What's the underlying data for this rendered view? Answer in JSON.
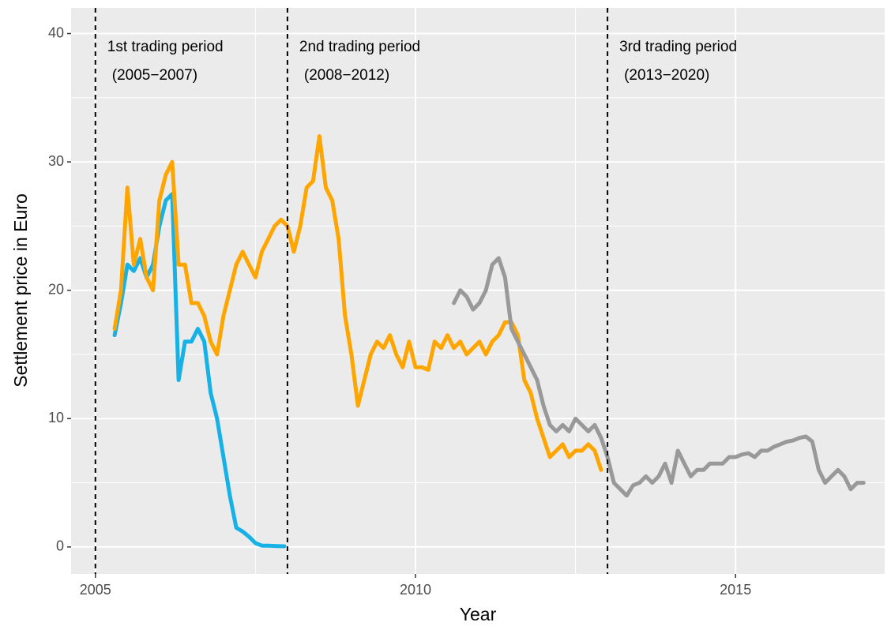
{
  "chart_data": {
    "type": "line",
    "xlabel": "Year",
    "ylabel": "Settlement price in Euro",
    "xlim": [
      2004.62,
      2017.33
    ],
    "ylim": [
      -2.1,
      42
    ],
    "xticks": [
      2005,
      2010,
      2015
    ],
    "yticks": [
      0,
      10,
      20,
      30,
      40
    ],
    "minor_xticks": [
      2007.5,
      2012.5,
      2017.5
    ],
    "minor_yticks": [
      5,
      15,
      25,
      35
    ],
    "grid": true,
    "periods": [
      {
        "start": 2005,
        "label": "1st trading period",
        "range": "(2005−2007)"
      },
      {
        "start": 2008,
        "label": "2nd trading period",
        "range": "(2008−2012)"
      },
      {
        "start": 2013,
        "label": "3rd trading period",
        "range": "(2013−2020)"
      }
    ],
    "series": [
      {
        "color": "#16b1e6",
        "x": [
          2005.3,
          2005.4,
          2005.5,
          2005.6,
          2005.7,
          2005.8,
          2005.9,
          2006.0,
          2006.1,
          2006.2,
          2006.3,
          2006.4,
          2006.5,
          2006.6,
          2006.7,
          2006.8,
          2006.9,
          2007.0,
          2007.1,
          2007.2,
          2007.3,
          2007.4,
          2007.5,
          2007.6,
          2007.7,
          2007.8,
          2007.95
        ],
        "values": [
          16.5,
          19,
          22,
          21.5,
          22.5,
          21,
          22,
          25,
          27,
          27.5,
          13,
          16,
          16,
          17,
          16,
          12,
          10,
          7,
          4,
          1.5,
          1.2,
          0.8,
          0.3,
          0.1,
          0.1,
          0.08,
          0.05
        ]
      },
      {
        "color": "#ffa500",
        "x": [
          2005.3,
          2005.4,
          2005.5,
          2005.6,
          2005.7,
          2005.8,
          2005.9,
          2006.0,
          2006.1,
          2006.2,
          2006.3,
          2006.4,
          2006.5,
          2006.6,
          2006.7,
          2006.8,
          2006.9,
          2007.0,
          2007.1,
          2007.2,
          2007.3,
          2007.4,
          2007.5,
          2007.6,
          2007.7,
          2007.8,
          2007.9,
          2008.0,
          2008.1,
          2008.2,
          2008.3,
          2008.4,
          2008.5,
          2008.6,
          2008.7,
          2008.8,
          2008.9,
          2009.0,
          2009.1,
          2009.2,
          2009.3,
          2009.4,
          2009.5,
          2009.6,
          2009.7,
          2009.8,
          2009.9,
          2010.0,
          2010.1,
          2010.2,
          2010.3,
          2010.4,
          2010.5,
          2010.6,
          2010.7,
          2010.8,
          2010.9,
          2011.0,
          2011.1,
          2011.2,
          2011.3,
          2011.4,
          2011.5,
          2011.6,
          2011.7,
          2011.8,
          2011.9,
          2012.0,
          2012.1,
          2012.2,
          2012.3,
          2012.4,
          2012.5,
          2012.6,
          2012.7,
          2012.8,
          2012.9
        ],
        "values": [
          17,
          20,
          28,
          22,
          24,
          21,
          20,
          27,
          29,
          30,
          22,
          22,
          19,
          19,
          18,
          16,
          15,
          18,
          20,
          22,
          23,
          22,
          21,
          23,
          24,
          25,
          25.5,
          25,
          23,
          25,
          28,
          28.5,
          32,
          28,
          27,
          24,
          18,
          15,
          11,
          13,
          15,
          16,
          15.5,
          16.5,
          15,
          14,
          16,
          14,
          14,
          13.8,
          16,
          15.5,
          16.5,
          15.5,
          16,
          15,
          15.5,
          16,
          15,
          16,
          16.5,
          17.5,
          17.5,
          16.5,
          13,
          12,
          10,
          8.5,
          7,
          7.5,
          8,
          7,
          7.5,
          7.5,
          8,
          7.5,
          6
        ]
      },
      {
        "color": "#999999",
        "x": [
          2010.6,
          2010.7,
          2010.8,
          2010.9,
          2011.0,
          2011.1,
          2011.2,
          2011.3,
          2011.4,
          2011.5,
          2011.6,
          2011.7,
          2011.8,
          2011.9,
          2012.0,
          2012.1,
          2012.2,
          2012.3,
          2012.4,
          2012.5,
          2012.6,
          2012.7,
          2012.8,
          2012.9,
          2013.0,
          2013.1,
          2013.2,
          2013.3,
          2013.4,
          2013.5,
          2013.6,
          2013.7,
          2013.8,
          2013.9,
          2014.0,
          2014.1,
          2014.2,
          2014.3,
          2014.4,
          2014.5,
          2014.6,
          2014.7,
          2014.8,
          2014.9,
          2015.0,
          2015.1,
          2015.2,
          2015.3,
          2015.4,
          2015.5,
          2015.6,
          2015.7,
          2015.8,
          2015.9,
          2016.0,
          2016.1,
          2016.2,
          2016.3,
          2016.4,
          2016.5,
          2016.6,
          2016.7,
          2016.8,
          2016.9,
          2017.0
        ],
        "values": [
          19,
          20,
          19.5,
          18.5,
          19,
          20,
          22,
          22.5,
          21,
          17,
          16,
          15,
          14,
          13,
          11,
          9.5,
          9,
          9.5,
          9,
          10,
          9.5,
          9,
          9.5,
          8.5,
          7,
          5,
          4.5,
          4,
          4.8,
          5,
          5.5,
          5,
          5.5,
          6.5,
          5,
          7.5,
          6.5,
          5.5,
          6,
          6,
          6.5,
          6.5,
          6.5,
          7,
          7,
          7.2,
          7.3,
          7,
          7.5,
          7.5,
          7.8,
          8,
          8.2,
          8.3,
          8.5,
          8.6,
          8.2,
          6,
          5,
          5.5,
          6,
          5.5,
          4.5,
          5,
          5
        ]
      }
    ]
  }
}
